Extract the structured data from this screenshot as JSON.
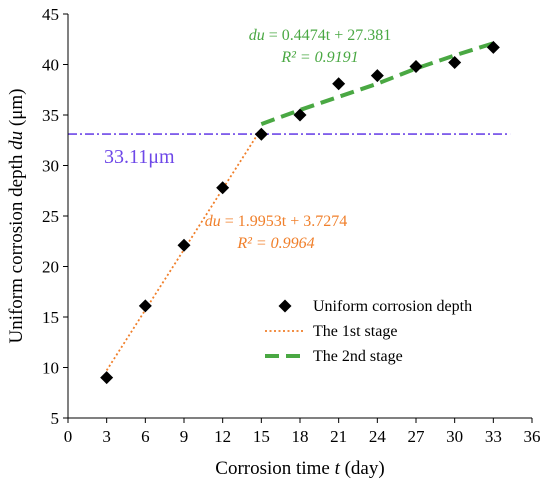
{
  "chart_data": {
    "type": "scatter",
    "xlabel": {
      "prefix": "Corrosion time ",
      "var": "t",
      "suffix": " (day)"
    },
    "ylabel": {
      "prefix": "Uniform corrosion depth ",
      "var": "du",
      "suffix": " (μm)"
    },
    "xlim": [
      0,
      36
    ],
    "ylim": [
      5,
      45
    ],
    "x_ticks": [
      0,
      3,
      6,
      9,
      12,
      15,
      18,
      21,
      24,
      27,
      30,
      33,
      36
    ],
    "y_ticks": [
      5,
      10,
      15,
      20,
      25,
      30,
      35,
      40,
      45
    ],
    "grid": false,
    "series": [
      {
        "name": "Uniform corrosion depth",
        "kind": "scatter",
        "marker": "diamond",
        "color": "#000000",
        "x": [
          3,
          6,
          9,
          12,
          15,
          18,
          21,
          24,
          27,
          30,
          33
        ],
        "y": [
          9.0,
          16.1,
          22.1,
          27.8,
          33.1,
          35.0,
          38.1,
          38.9,
          39.8,
          40.2,
          41.7
        ]
      },
      {
        "name": "The 1st stage",
        "kind": "fit-line",
        "style": "dotted",
        "color": "#F07F2A",
        "slope": 1.9953,
        "intercept": 3.7274,
        "x_range": [
          3,
          15
        ]
      },
      {
        "name": "The 2nd stage",
        "kind": "fit-line",
        "style": "dashed",
        "color": "#4AA843",
        "points_x": [
          15,
          18,
          21,
          24,
          27,
          30,
          33
        ],
        "points_y": [
          34.1,
          35.5,
          36.8,
          38.1,
          39.6,
          40.9,
          42.1
        ]
      }
    ],
    "threshold": {
      "value": 33.11,
      "label": "33.11μm",
      "color": "#6E48E8",
      "style": "dash-dot",
      "x_range": [
        0,
        34.3
      ]
    },
    "annotations": [
      {
        "series": "The 2nd stage",
        "color": "#4AA843",
        "var": "du",
        "equation": " = 0.4474t + 27.381",
        "r2_label": "R² = 0.9191"
      },
      {
        "series": "The 1st stage",
        "color": "#F07F2A",
        "var": "du",
        "equation": " = 1.9953t + 3.7274",
        "r2_label": "R² = 0.9964"
      }
    ],
    "legend": {
      "position": "bottom-right"
    }
  }
}
